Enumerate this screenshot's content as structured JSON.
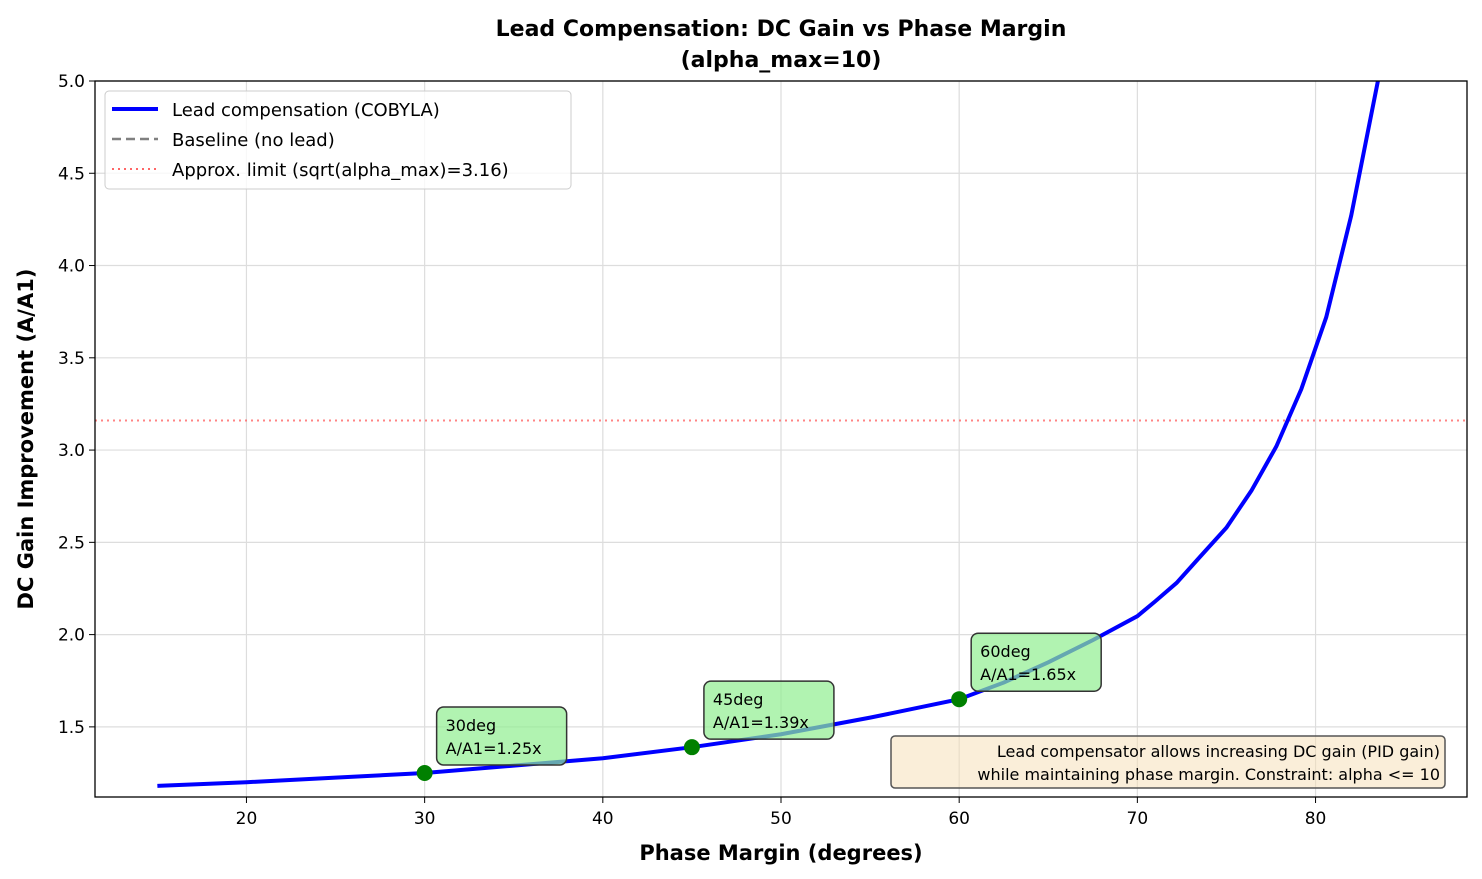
{
  "chart_data": {
    "type": "line",
    "title": "Lead Compensation: DC Gain vs Phase Margin",
    "subtitle": "(alpha_max=10)",
    "xlabel": "Phase Margin (degrees)",
    "ylabel": "DC Gain Improvement (A/A1)",
    "xlim": [
      11.5,
      88.5
    ],
    "ylim": [
      1.12,
      5.0
    ],
    "xticks": [
      20,
      30,
      40,
      50,
      60,
      70,
      80
    ],
    "yticks": [
      1.5,
      2.0,
      2.5,
      3.0,
      3.5,
      4.0,
      4.5,
      5.0
    ],
    "grid": true,
    "legend_position": "top-left",
    "series": [
      {
        "name": "Lead compensation (COBYLA)",
        "color": "#0000ff",
        "style": "solid",
        "x": [
          15,
          20,
          25,
          30,
          35,
          40,
          45,
          50,
          55,
          60,
          62.5,
          65,
          67.5,
          70,
          71,
          72.2,
          73.5,
          75,
          76.4,
          77.8,
          79.2,
          80.6,
          82,
          83.5,
          85
        ],
        "y": [
          1.18,
          1.2,
          1.225,
          1.25,
          1.29,
          1.33,
          1.39,
          1.46,
          1.55,
          1.65,
          1.74,
          1.85,
          1.97,
          2.1,
          2.18,
          2.28,
          2.42,
          2.58,
          2.78,
          3.02,
          3.33,
          3.72,
          4.27,
          5.0,
          6.0
        ]
      },
      {
        "name": "Baseline (no lead)",
        "color": "#808080",
        "style": "dashed",
        "x": [
          15,
          85
        ],
        "y": [
          1.0,
          1.0
        ]
      },
      {
        "name": "Approx. limit (sqrt(alpha_max)=3.16)",
        "color": "#ff6666",
        "style": "dotted",
        "hline": 3.16
      }
    ],
    "markers": [
      {
        "x": 30,
        "y": 1.25,
        "label_line1": "30deg",
        "label_line2": "A/A1=1.25x"
      },
      {
        "x": 45,
        "y": 1.39,
        "label_line1": "45deg",
        "label_line2": "A/A1=1.39x"
      },
      {
        "x": 60,
        "y": 1.65,
        "label_line1": "60deg",
        "label_line2": "A/A1=1.65x"
      }
    ],
    "marker_color": "#008000",
    "annotation_line1": "Lead compensator allows increasing DC gain (PID gain)",
    "annotation_line2": "while maintaining phase margin. Constraint: alpha <= 10"
  }
}
